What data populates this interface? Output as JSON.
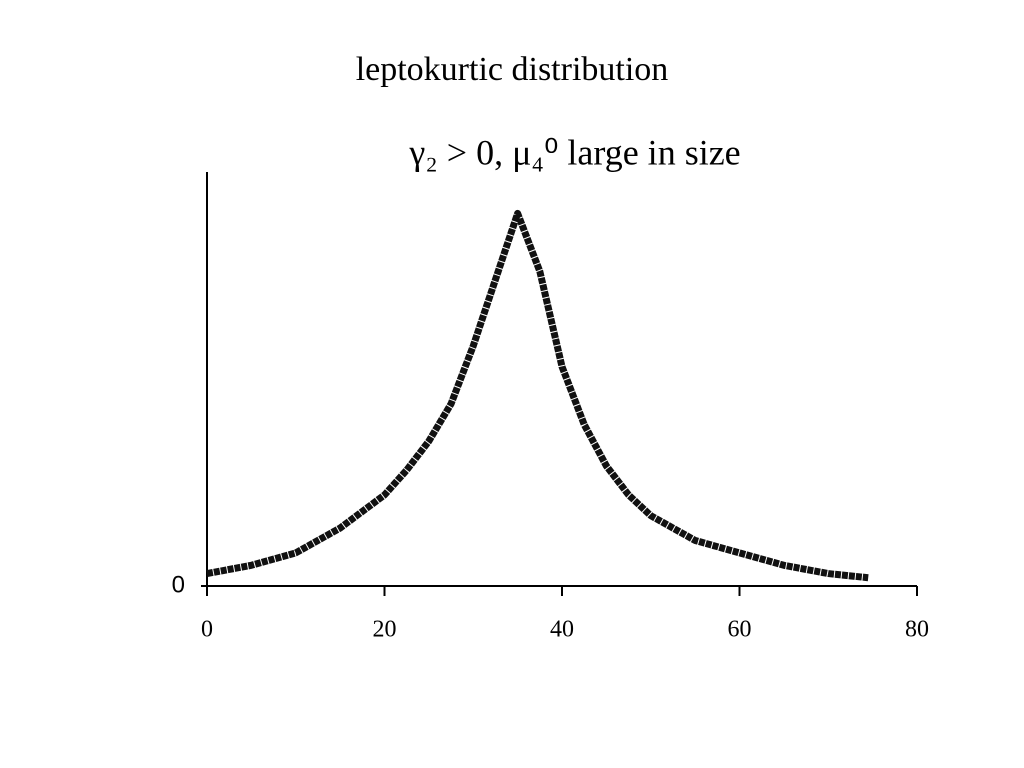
{
  "chart_data": {
    "type": "line",
    "title": "leptokurtic distribution",
    "subtitle": "γ₂ > 0, μ₄⁰ large in size",
    "x": [
      0,
      5,
      10,
      15,
      20,
      22.5,
      25,
      27.5,
      30,
      32.5,
      35,
      37.5,
      40,
      42.5,
      45,
      47.5,
      50,
      55,
      60,
      65,
      70,
      74.5
    ],
    "series": [
      {
        "color": "#111111",
        "values": [
          0.03,
          0.05,
          0.08,
          0.14,
          0.22,
          0.28,
          0.35,
          0.44,
          0.58,
          0.74,
          0.9,
          0.76,
          0.53,
          0.39,
          0.29,
          0.22,
          0.17,
          0.11,
          0.08,
          0.05,
          0.03,
          0.02
        ]
      }
    ],
    "xlim": [
      0,
      80
    ],
    "xticks": [
      0,
      20,
      40,
      60,
      80
    ],
    "ylim": [
      0,
      1
    ],
    "yticks": [
      0
    ],
    "grid": false
  }
}
